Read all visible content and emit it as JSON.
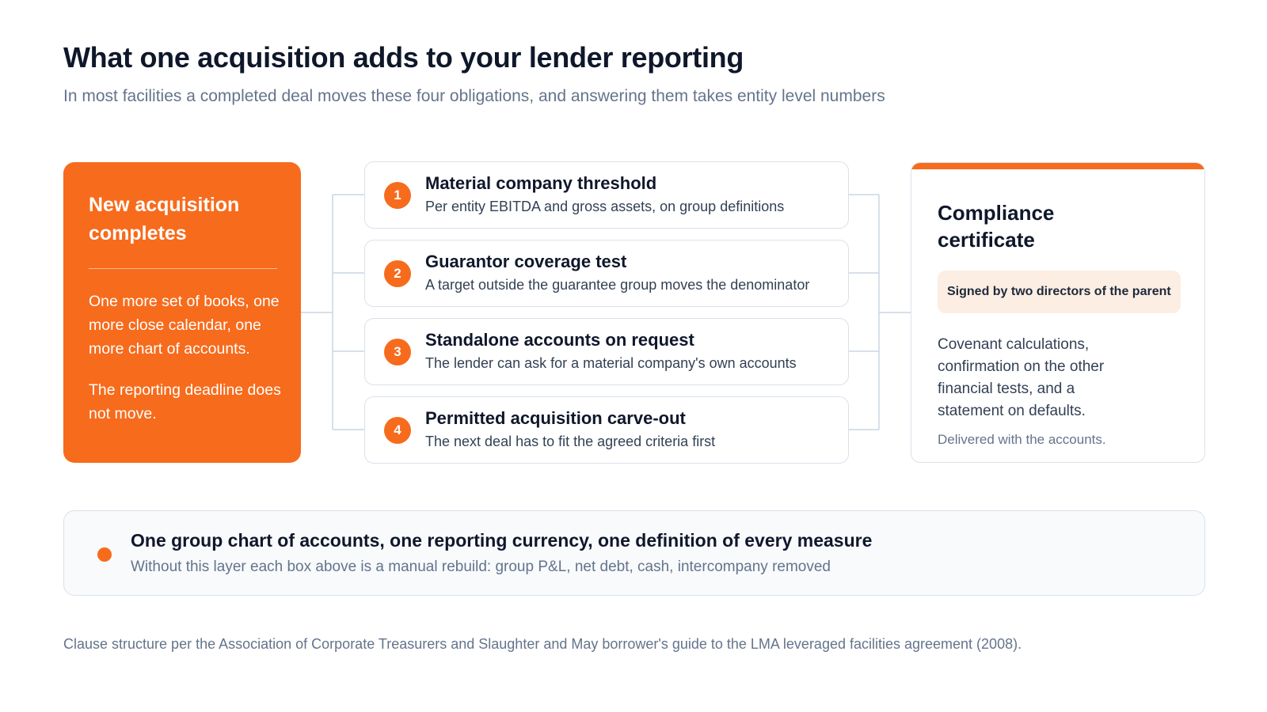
{
  "header": {
    "title": "What one acquisition adds to your lender reporting",
    "subtitle": "In most facilities a completed deal moves these four obligations, and answering them takes entity level numbers"
  },
  "trigger": {
    "title": "New acquisition completes",
    "body": [
      "One more set of books, one more close calendar, one more chart of accounts.",
      "The reporting deadline does not move."
    ]
  },
  "obligations": [
    {
      "number": "1",
      "title": "Material company threshold",
      "description": "Per entity EBITDA and gross assets, on group definitions"
    },
    {
      "number": "2",
      "title": "Guarantor coverage test",
      "description": "A target outside the guarantee group moves the denominator"
    },
    {
      "number": "3",
      "title": "Standalone accounts on request",
      "description": "The lender can ask for a material company's own accounts"
    },
    {
      "number": "4",
      "title": "Permitted acquisition carve-out",
      "description": "The next deal has to fit the agreed criteria first"
    }
  ],
  "certificate": {
    "title": "Compliance certificate",
    "badge": "Signed by two directors of the parent",
    "body": "Covenant calculations, confirmation on the other financial tests, and a statement on defaults.",
    "note": "Delivered with the accounts."
  },
  "foundation": {
    "title": "One group chart of accounts, one reporting currency, one definition of every measure",
    "description": "Without this layer each box above is a manual rebuild: group P&L, net debt, cash, intercompany removed"
  },
  "footnote": "Clause structure per the Association of Corporate Treasurers and Slaughter and May borrower's guide to the LMA leveraged facilities agreement (2008)."
}
